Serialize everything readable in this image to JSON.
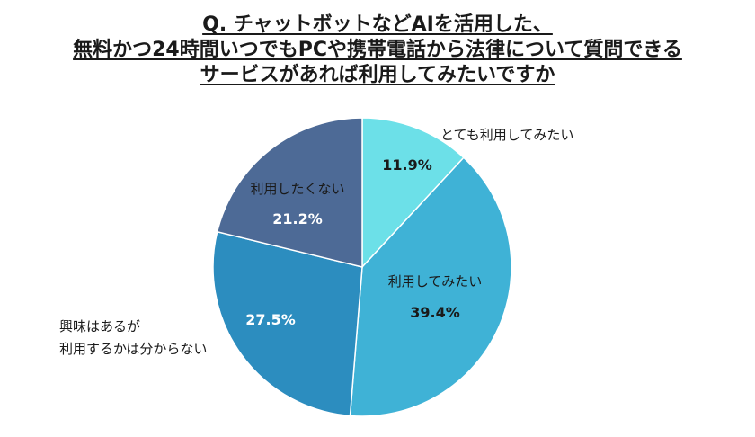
{
  "title": {
    "lines": [
      "Q. チャットボットなどAIを活用した、",
      "無料かつ24時間いつでもPCや携帯電話から法律について質問できる",
      "サービスがあれば利用してみたいですか"
    ]
  },
  "chart_data": {
    "type": "pie",
    "unit": "%",
    "slices": [
      {
        "label": "とても利用してみたい",
        "value": 11.9,
        "display": "11.9%",
        "color": "#6ce0e8",
        "label_color": "#1a1a1a",
        "value_color": "#1a1a1a",
        "label_lines": [
          "とても利用してみたい"
        ]
      },
      {
        "label": "利用してみたい",
        "value": 39.4,
        "display": "39.4%",
        "color": "#3fb2d6",
        "label_color": "#1a1a1a",
        "value_color": "#1a1a1a",
        "label_lines": [
          "利用してみたい"
        ]
      },
      {
        "label": "興味はあるが利用するかは分からない",
        "value": 27.5,
        "display": "27.5%",
        "color": "#2c8dbf",
        "label_color": "#1a1a1a",
        "value_color": "#ffffff",
        "label_lines": [
          "興味はあるが",
          "利用するかは分からない"
        ]
      },
      {
        "label": "利用したくない",
        "value": 21.2,
        "display": "21.2%",
        "color": "#4d6a96",
        "label_color": "#ffffff",
        "value_color": "#ffffff",
        "label_lines": [
          "利用したくない"
        ]
      }
    ],
    "start": "top",
    "direction": "clockwise"
  }
}
